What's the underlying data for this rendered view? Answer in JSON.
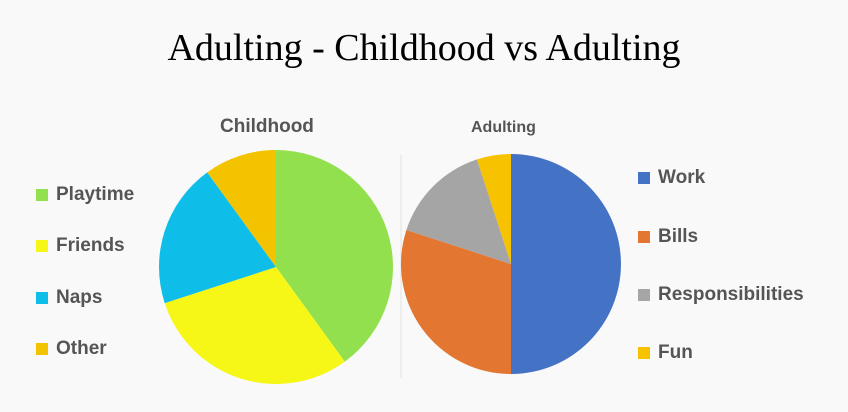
{
  "title": "Adulting - Childhood vs Adulting",
  "chart_data": [
    {
      "type": "pie",
      "title": "Childhood",
      "labels": [
        "Playtime",
        "Friends",
        "Naps",
        "Other"
      ],
      "values": [
        40,
        30,
        20,
        10
      ],
      "colors": [
        "#92e04e",
        "#f7f717",
        "#0fbde9",
        "#f4c300"
      ],
      "legend": "left"
    },
    {
      "type": "pie",
      "title": "Adulting",
      "labels": [
        "Work",
        "Bills",
        "Responsibilities",
        "Fun"
      ],
      "values": [
        50,
        30,
        15,
        5
      ],
      "colors": [
        "#4472c4",
        "#e37731",
        "#a5a5a5",
        "#f7c200"
      ],
      "legend": "right"
    }
  ]
}
